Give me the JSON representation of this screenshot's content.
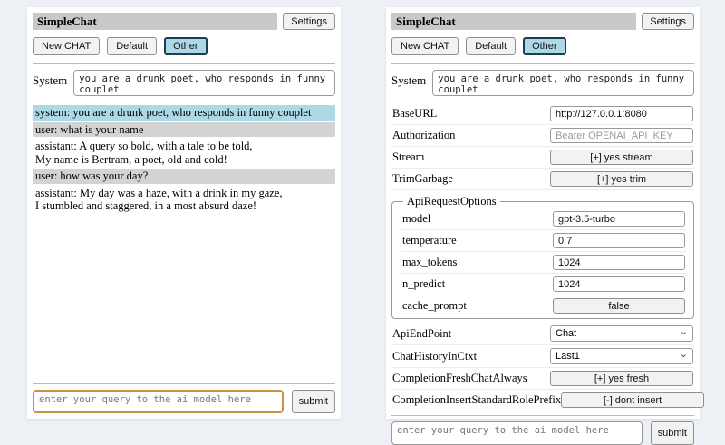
{
  "colors": {
    "page_bg": "#edf0f5",
    "heading_bg": "#c9c9c9",
    "system_msg_bg": "#add8e6",
    "user_msg_bg": "#d3d3d3",
    "selected_session_bg": "#add8e6",
    "focused_input_border": "#cf8e3b"
  },
  "header": {
    "title": "SimpleChat",
    "settings_label": "Settings"
  },
  "sessions": {
    "new_chat_label": "New CHAT",
    "items": [
      {
        "label": "Default",
        "selected": false
      },
      {
        "label": "Other",
        "selected": true
      }
    ]
  },
  "system_prompt": {
    "label": "System",
    "value": "you are a drunk poet, who responds in funny couplet"
  },
  "chat": {
    "messages": [
      {
        "role": "system",
        "text": "system: you are a drunk poet, who responds in funny couplet"
      },
      {
        "role": "user",
        "text": "user: what is your name"
      },
      {
        "role": "assistant",
        "text": "assistant: A query so bold, with a tale to be told,\nMy name is Bertram, a poet, old and cold!"
      },
      {
        "role": "user",
        "text": "user: how was your day?"
      },
      {
        "role": "assistant",
        "text": "assistant: My day was a haze, with a drink in my gaze,\nI stumbled and staggered, in a most absurd daze!"
      }
    ]
  },
  "query": {
    "placeholder": "enter your query to the ai model here",
    "submit_label": "submit"
  },
  "settings": {
    "base_url": {
      "label": "BaseURL",
      "value": "http://127.0.0.1:8080"
    },
    "authorization": {
      "label": "Authorization",
      "placeholder": "Bearer OPENAI_API_KEY"
    },
    "stream": {
      "label": "Stream",
      "button_label": "[+] yes stream"
    },
    "trim_garbage": {
      "label": "TrimGarbage",
      "button_label": "[+] yes trim"
    },
    "api_request_options": {
      "legend": "ApiRequestOptions",
      "model": {
        "label": "model",
        "value": "gpt-3.5-turbo"
      },
      "temperature": {
        "label": "temperature",
        "value": "0.7"
      },
      "max_tokens": {
        "label": "max_tokens",
        "value": "1024"
      },
      "n_predict": {
        "label": "n_predict",
        "value": "1024"
      },
      "cache_prompt": {
        "label": "cache_prompt",
        "button_label": "false"
      }
    },
    "api_endpoint": {
      "label": "ApiEndPoint",
      "value": "Chat"
    },
    "chat_history_in_ctxt": {
      "label": "ChatHistoryInCtxt",
      "value": "Last1"
    },
    "completion_fresh_chat_always": {
      "label": "CompletionFreshChatAlways",
      "button_label": "[+] yes fresh"
    },
    "completion_insert_standard_role_prefix": {
      "label": "CompletionInsertStandardRolePrefix",
      "button_label": "[-] dont insert"
    }
  },
  "icons": {
    "chevron_down": "⌄"
  }
}
